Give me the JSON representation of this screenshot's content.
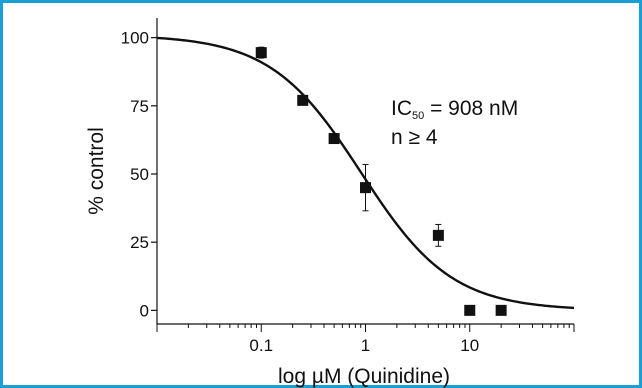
{
  "chart_data": {
    "type": "scatter",
    "xscale": "log",
    "xlabel": "log µM (Quinidine)",
    "ylabel": "% control",
    "xlim": [
      0.01,
      100
    ],
    "ylim": [
      -5,
      105
    ],
    "x_ticks": [
      {
        "value": 0.1,
        "label": "0.1"
      },
      {
        "value": 1,
        "label": "1"
      },
      {
        "value": 10,
        "label": "10"
      }
    ],
    "y_ticks": [
      {
        "value": 0,
        "label": "0"
      },
      {
        "value": 25,
        "label": "25"
      },
      {
        "value": 50,
        "label": "50"
      },
      {
        "value": 75,
        "label": "75"
      },
      {
        "value": 100,
        "label": "100"
      }
    ],
    "series": [
      {
        "marker": "square",
        "color": "#111111",
        "points": [
          {
            "x": 0.1,
            "y": 94.5,
            "err": 2
          },
          {
            "x": 0.25,
            "y": 77,
            "err": 1.5
          },
          {
            "x": 0.5,
            "y": 63,
            "err": 0
          },
          {
            "x": 1,
            "y": 45,
            "err": 8.5
          },
          {
            "x": 5,
            "y": 27.5,
            "err": 4
          },
          {
            "x": 10,
            "y": 0,
            "err": 0
          },
          {
            "x": 20,
            "y": 0,
            "err": 0
          }
        ]
      }
    ],
    "fit": {
      "model": "hill",
      "top": 101,
      "bottom": 0,
      "ic50_uM": 0.908,
      "hill_slope": 1,
      "color": "#111111"
    },
    "annotations": {
      "ic50_prefix": "IC",
      "ic50_subscript": "50",
      "ic50_value": " = 908 nM",
      "n_text": "n ≥ 4"
    },
    "grid": false,
    "legend": "none"
  }
}
